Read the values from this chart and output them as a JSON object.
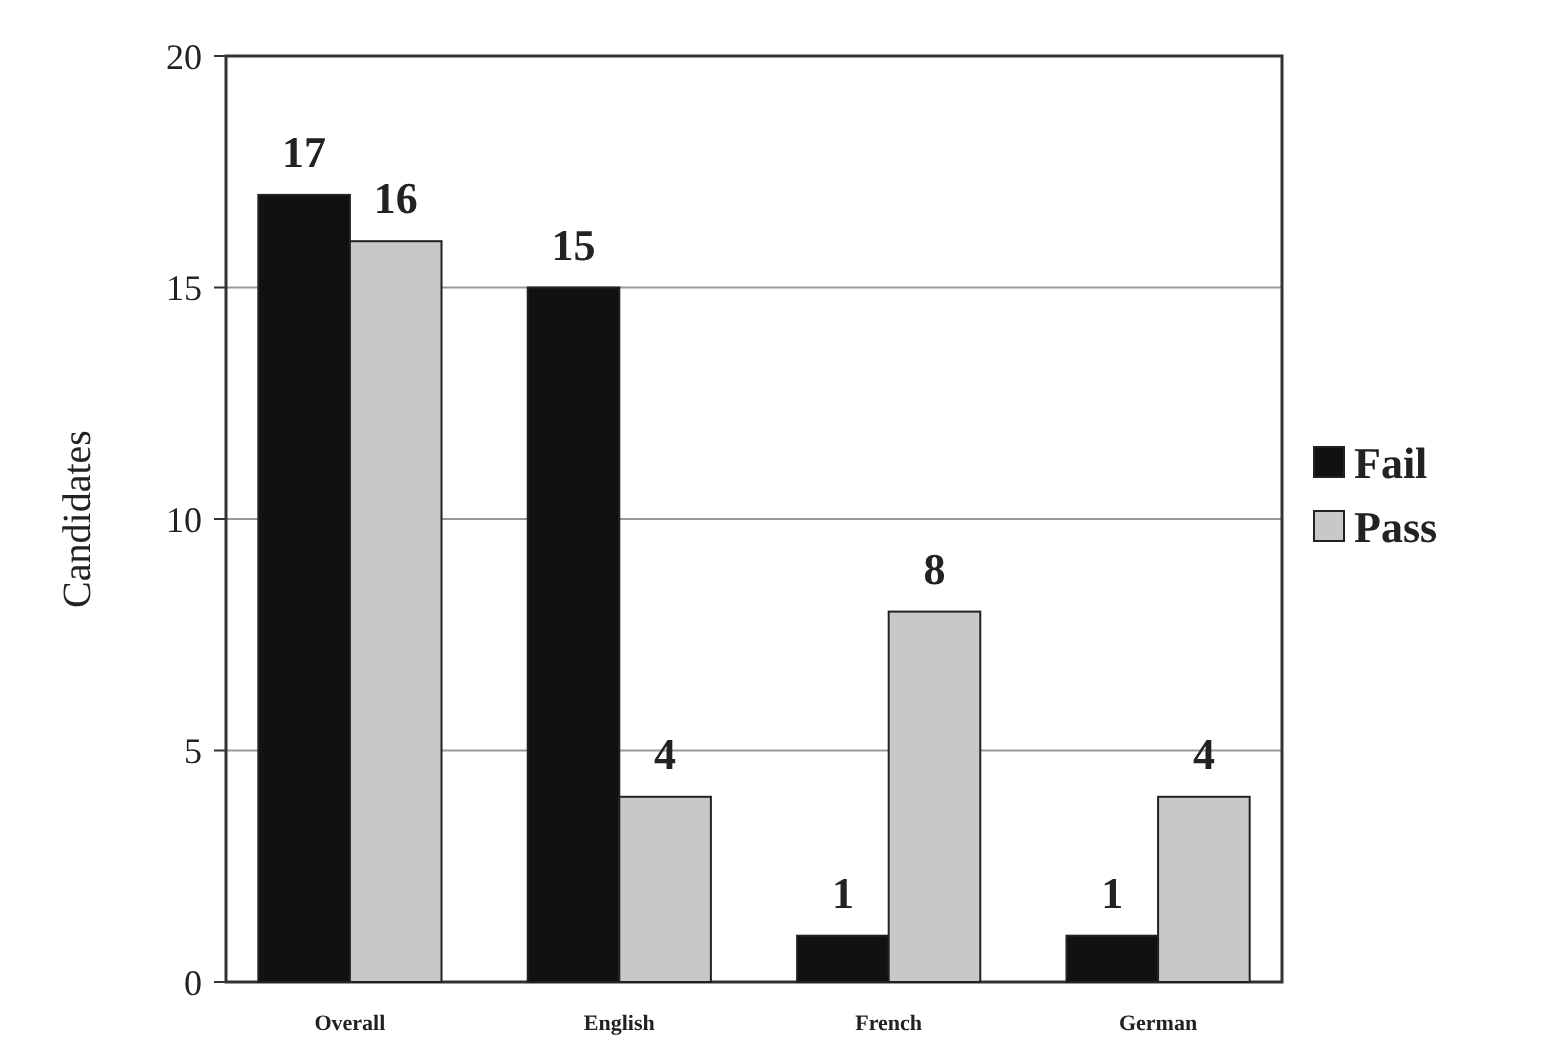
{
  "chart_data": {
    "type": "bar",
    "ylabel": "Candidates",
    "categories": [
      "Overall",
      "English",
      "French",
      "German"
    ],
    "series": [
      {
        "name": "Fail",
        "color": "#111111",
        "values": [
          17,
          15,
          1,
          1
        ]
      },
      {
        "name": "Pass",
        "color": "#c8c8c8",
        "values": [
          16,
          4,
          8,
          4
        ]
      }
    ],
    "ylim": [
      0,
      20
    ],
    "yticks": [
      0,
      5,
      10,
      15,
      20
    ],
    "grid": "y",
    "legend": "right",
    "data_labels": true
  }
}
